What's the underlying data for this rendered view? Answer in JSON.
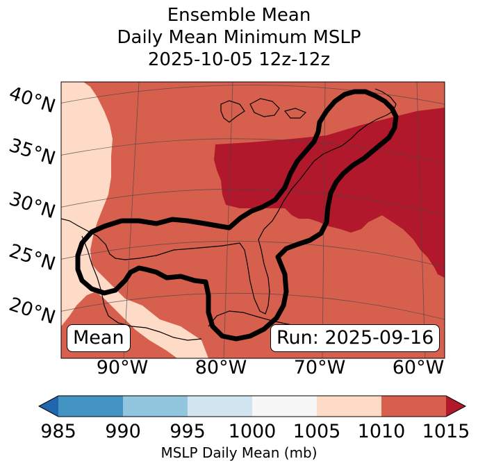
{
  "header": {
    "title_line1": "Ensemble Mean",
    "title_line2": "Daily Mean Minimum MSLP",
    "title_line3": "2025-10-05 12z-12z"
  },
  "map": {
    "lat_labels": [
      "40°N",
      "35°N",
      "30°N",
      "25°N",
      "20°N"
    ],
    "lon_labels": [
      "90°W",
      "80°W",
      "70°W",
      "60°W"
    ],
    "badge_left": "Mean",
    "badge_right": "Run: 2025-09-16"
  },
  "colorbar": {
    "ticks": [
      "985",
      "990",
      "995",
      "1000",
      "1005",
      "1010",
      "1015"
    ],
    "label": "MSLP Daily Mean (mb)",
    "colors": {
      "under": "#2166ac",
      "c985_990": "#4393c3",
      "c990_995": "#92c5de",
      "c995_1000": "#d1e5f0",
      "c1000_1005": "#f7f7f7",
      "c1005_1010": "#fddbc7",
      "c1010_1015": "#d6604d",
      "over": "#b2182b"
    }
  }
}
